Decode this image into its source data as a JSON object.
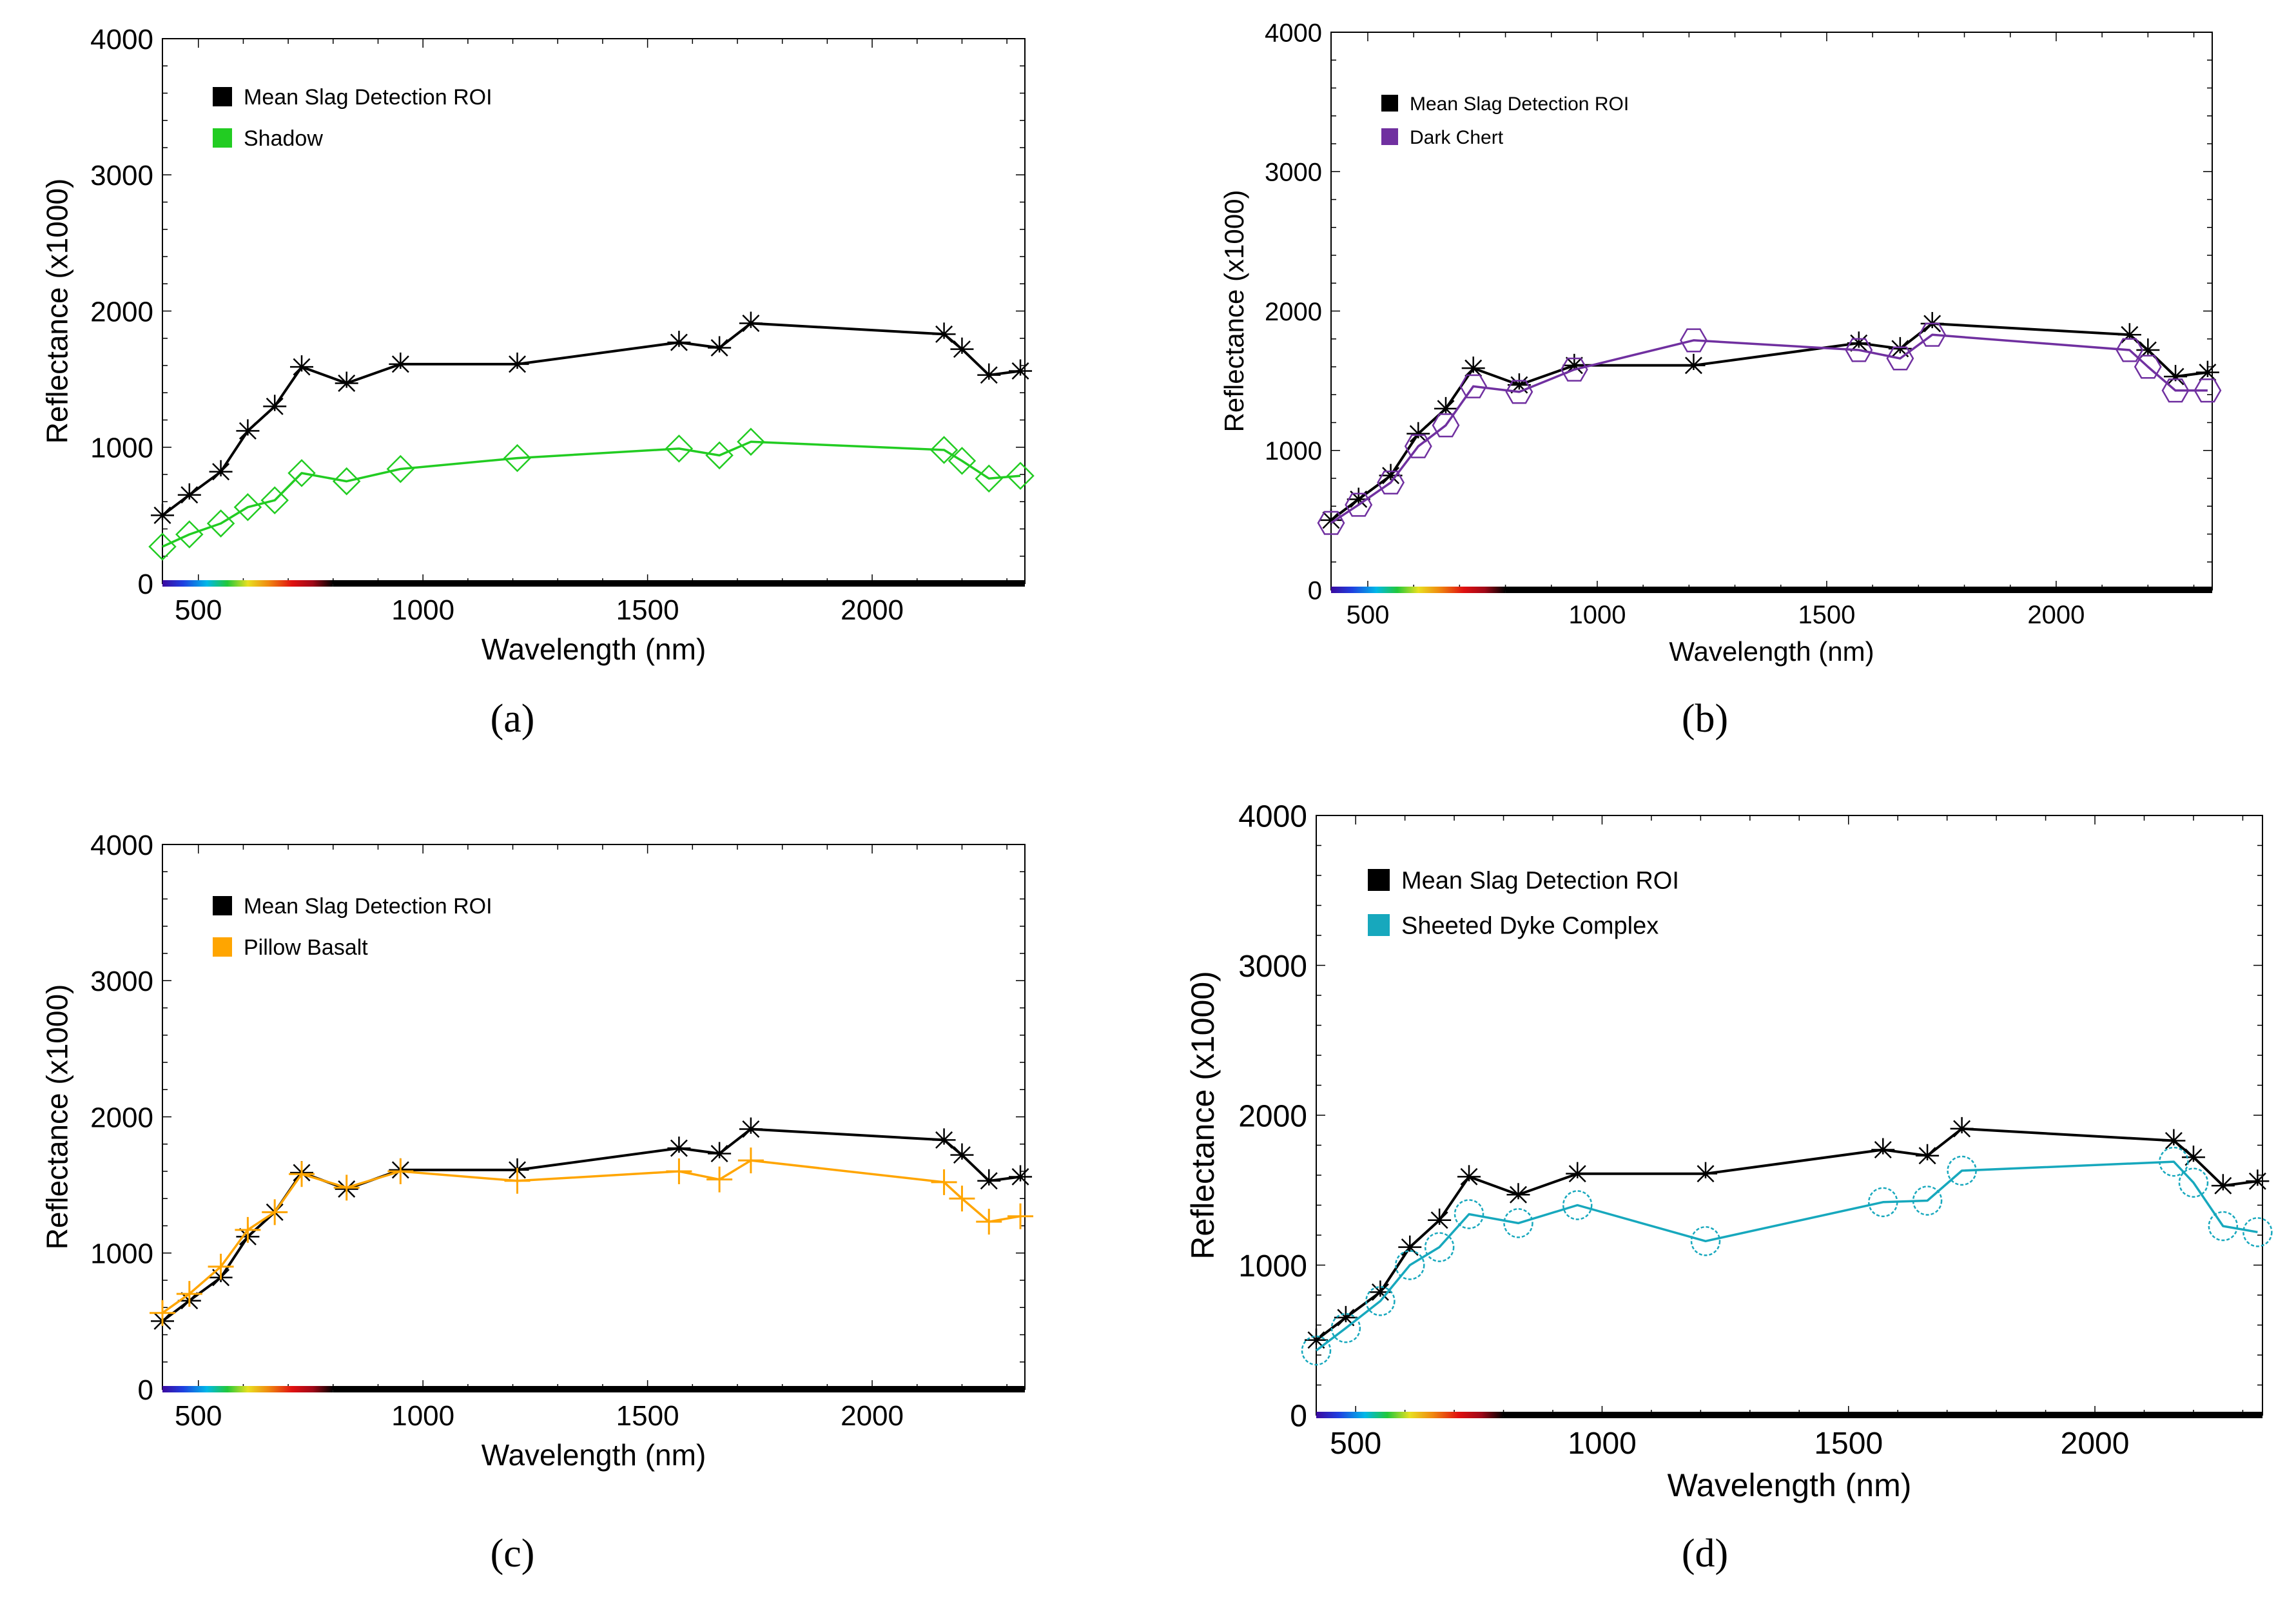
{
  "figure": {
    "panel_labels": [
      "(a)",
      "(b)",
      "(c)",
      "(d)"
    ]
  },
  "chart_data": [
    {
      "type": "line",
      "panel": "(a)",
      "xlabel": "Wavelength (nm)",
      "ylabel": "Reflectance (x1000)",
      "xlim": [
        420,
        2340
      ],
      "ylim": [
        0,
        4000
      ],
      "xticks": [
        500,
        1000,
        1500,
        2000
      ],
      "yticks": [
        0,
        1000,
        2000,
        3000,
        4000
      ],
      "legend_position": "top-left",
      "series": [
        {
          "name": "Mean Slag Detection ROI",
          "color": "#000000",
          "marker": "asterisk",
          "x": [
            420,
            480,
            550,
            610,
            670,
            730,
            830,
            950,
            1210,
            1570,
            1660,
            1730,
            2160,
            2200,
            2260,
            2330
          ],
          "y": [
            500,
            650,
            820,
            1120,
            1300,
            1590,
            1470,
            1610,
            1610,
            1770,
            1730,
            1910,
            1830,
            1720,
            1530,
            1560
          ]
        },
        {
          "name": "Shadow",
          "color": "#22cc22",
          "marker": "diamond",
          "x": [
            420,
            480,
            550,
            610,
            670,
            730,
            830,
            950,
            1210,
            1570,
            1660,
            1730,
            2160,
            2200,
            2260,
            2330
          ],
          "y": [
            270,
            360,
            440,
            560,
            610,
            810,
            750,
            840,
            920,
            990,
            940,
            1040,
            980,
            900,
            770,
            790
          ]
        }
      ]
    },
    {
      "type": "line",
      "panel": "(b)",
      "xlabel": "Wavelength (nm)",
      "ylabel": "Reflectance (x1000)",
      "xlim": [
        420,
        2340
      ],
      "ylim": [
        0,
        4000
      ],
      "xticks": [
        500,
        1000,
        1500,
        2000
      ],
      "yticks": [
        0,
        1000,
        2000,
        3000,
        4000
      ],
      "legend_position": "top-left",
      "series": [
        {
          "name": "Mean Slag Detection ROI",
          "color": "#000000",
          "marker": "asterisk",
          "x": [
            420,
            480,
            550,
            610,
            670,
            730,
            830,
            950,
            1210,
            1570,
            1660,
            1730,
            2160,
            2200,
            2260,
            2330
          ],
          "y": [
            500,
            650,
            820,
            1120,
            1300,
            1590,
            1470,
            1610,
            1610,
            1770,
            1730,
            1910,
            1830,
            1720,
            1530,
            1560
          ]
        },
        {
          "name": "Dark Chert",
          "color": "#7030a0",
          "marker": "hexagon",
          "x": [
            420,
            480,
            550,
            610,
            670,
            730,
            830,
            950,
            1210,
            1570,
            1660,
            1730,
            2160,
            2200,
            2260,
            2330
          ],
          "y": [
            480,
            610,
            770,
            1030,
            1180,
            1460,
            1420,
            1580,
            1790,
            1720,
            1660,
            1830,
            1720,
            1600,
            1430,
            1430
          ]
        }
      ]
    },
    {
      "type": "line",
      "panel": "(c)",
      "xlabel": "Wavelength (nm)",
      "ylabel": "Reflectance (x1000)",
      "xlim": [
        420,
        2340
      ],
      "ylim": [
        0,
        4000
      ],
      "xticks": [
        500,
        1000,
        1500,
        2000
      ],
      "yticks": [
        0,
        1000,
        2000,
        3000,
        4000
      ],
      "legend_position": "top-left",
      "series": [
        {
          "name": "Mean Slag Detection ROI",
          "color": "#000000",
          "marker": "asterisk",
          "x": [
            420,
            480,
            550,
            610,
            670,
            730,
            830,
            950,
            1210,
            1570,
            1660,
            1730,
            2160,
            2200,
            2260,
            2330
          ],
          "y": [
            500,
            650,
            820,
            1120,
            1300,
            1590,
            1470,
            1610,
            1610,
            1770,
            1730,
            1910,
            1830,
            1720,
            1530,
            1560
          ]
        },
        {
          "name": "Pillow Basalt",
          "color": "#ffa500",
          "marker": "plus",
          "x": [
            420,
            480,
            550,
            610,
            670,
            730,
            830,
            950,
            1210,
            1570,
            1660,
            1730,
            2160,
            2200,
            2260,
            2330
          ],
          "y": [
            560,
            700,
            900,
            1170,
            1300,
            1580,
            1480,
            1600,
            1530,
            1600,
            1540,
            1680,
            1520,
            1400,
            1230,
            1270
          ]
        }
      ]
    },
    {
      "type": "line",
      "panel": "(d)",
      "xlabel": "Wavelength (nm)",
      "ylabel": "Reflectance (x1000)",
      "xlim": [
        420,
        2340
      ],
      "ylim": [
        0,
        4000
      ],
      "xticks": [
        500,
        1000,
        1500,
        2000
      ],
      "yticks": [
        0,
        1000,
        2000,
        3000,
        4000
      ],
      "legend_position": "top-left",
      "series": [
        {
          "name": "Mean Slag Detection ROI",
          "color": "#000000",
          "marker": "asterisk",
          "x": [
            420,
            480,
            550,
            610,
            670,
            730,
            830,
            950,
            1210,
            1570,
            1660,
            1730,
            2160,
            2200,
            2260,
            2330
          ],
          "y": [
            500,
            650,
            820,
            1120,
            1300,
            1590,
            1470,
            1610,
            1610,
            1770,
            1730,
            1910,
            1830,
            1720,
            1530,
            1560
          ]
        },
        {
          "name": "Sheeted Dyke Complex",
          "color": "#17a8bd",
          "marker": "circle",
          "x": [
            420,
            480,
            550,
            610,
            670,
            730,
            830,
            950,
            1210,
            1570,
            1660,
            1730,
            2160,
            2200,
            2260,
            2330
          ],
          "y": [
            430,
            580,
            760,
            1000,
            1120,
            1340,
            1280,
            1400,
            1160,
            1420,
            1430,
            1630,
            1690,
            1550,
            1260,
            1220
          ]
        }
      ]
    }
  ]
}
